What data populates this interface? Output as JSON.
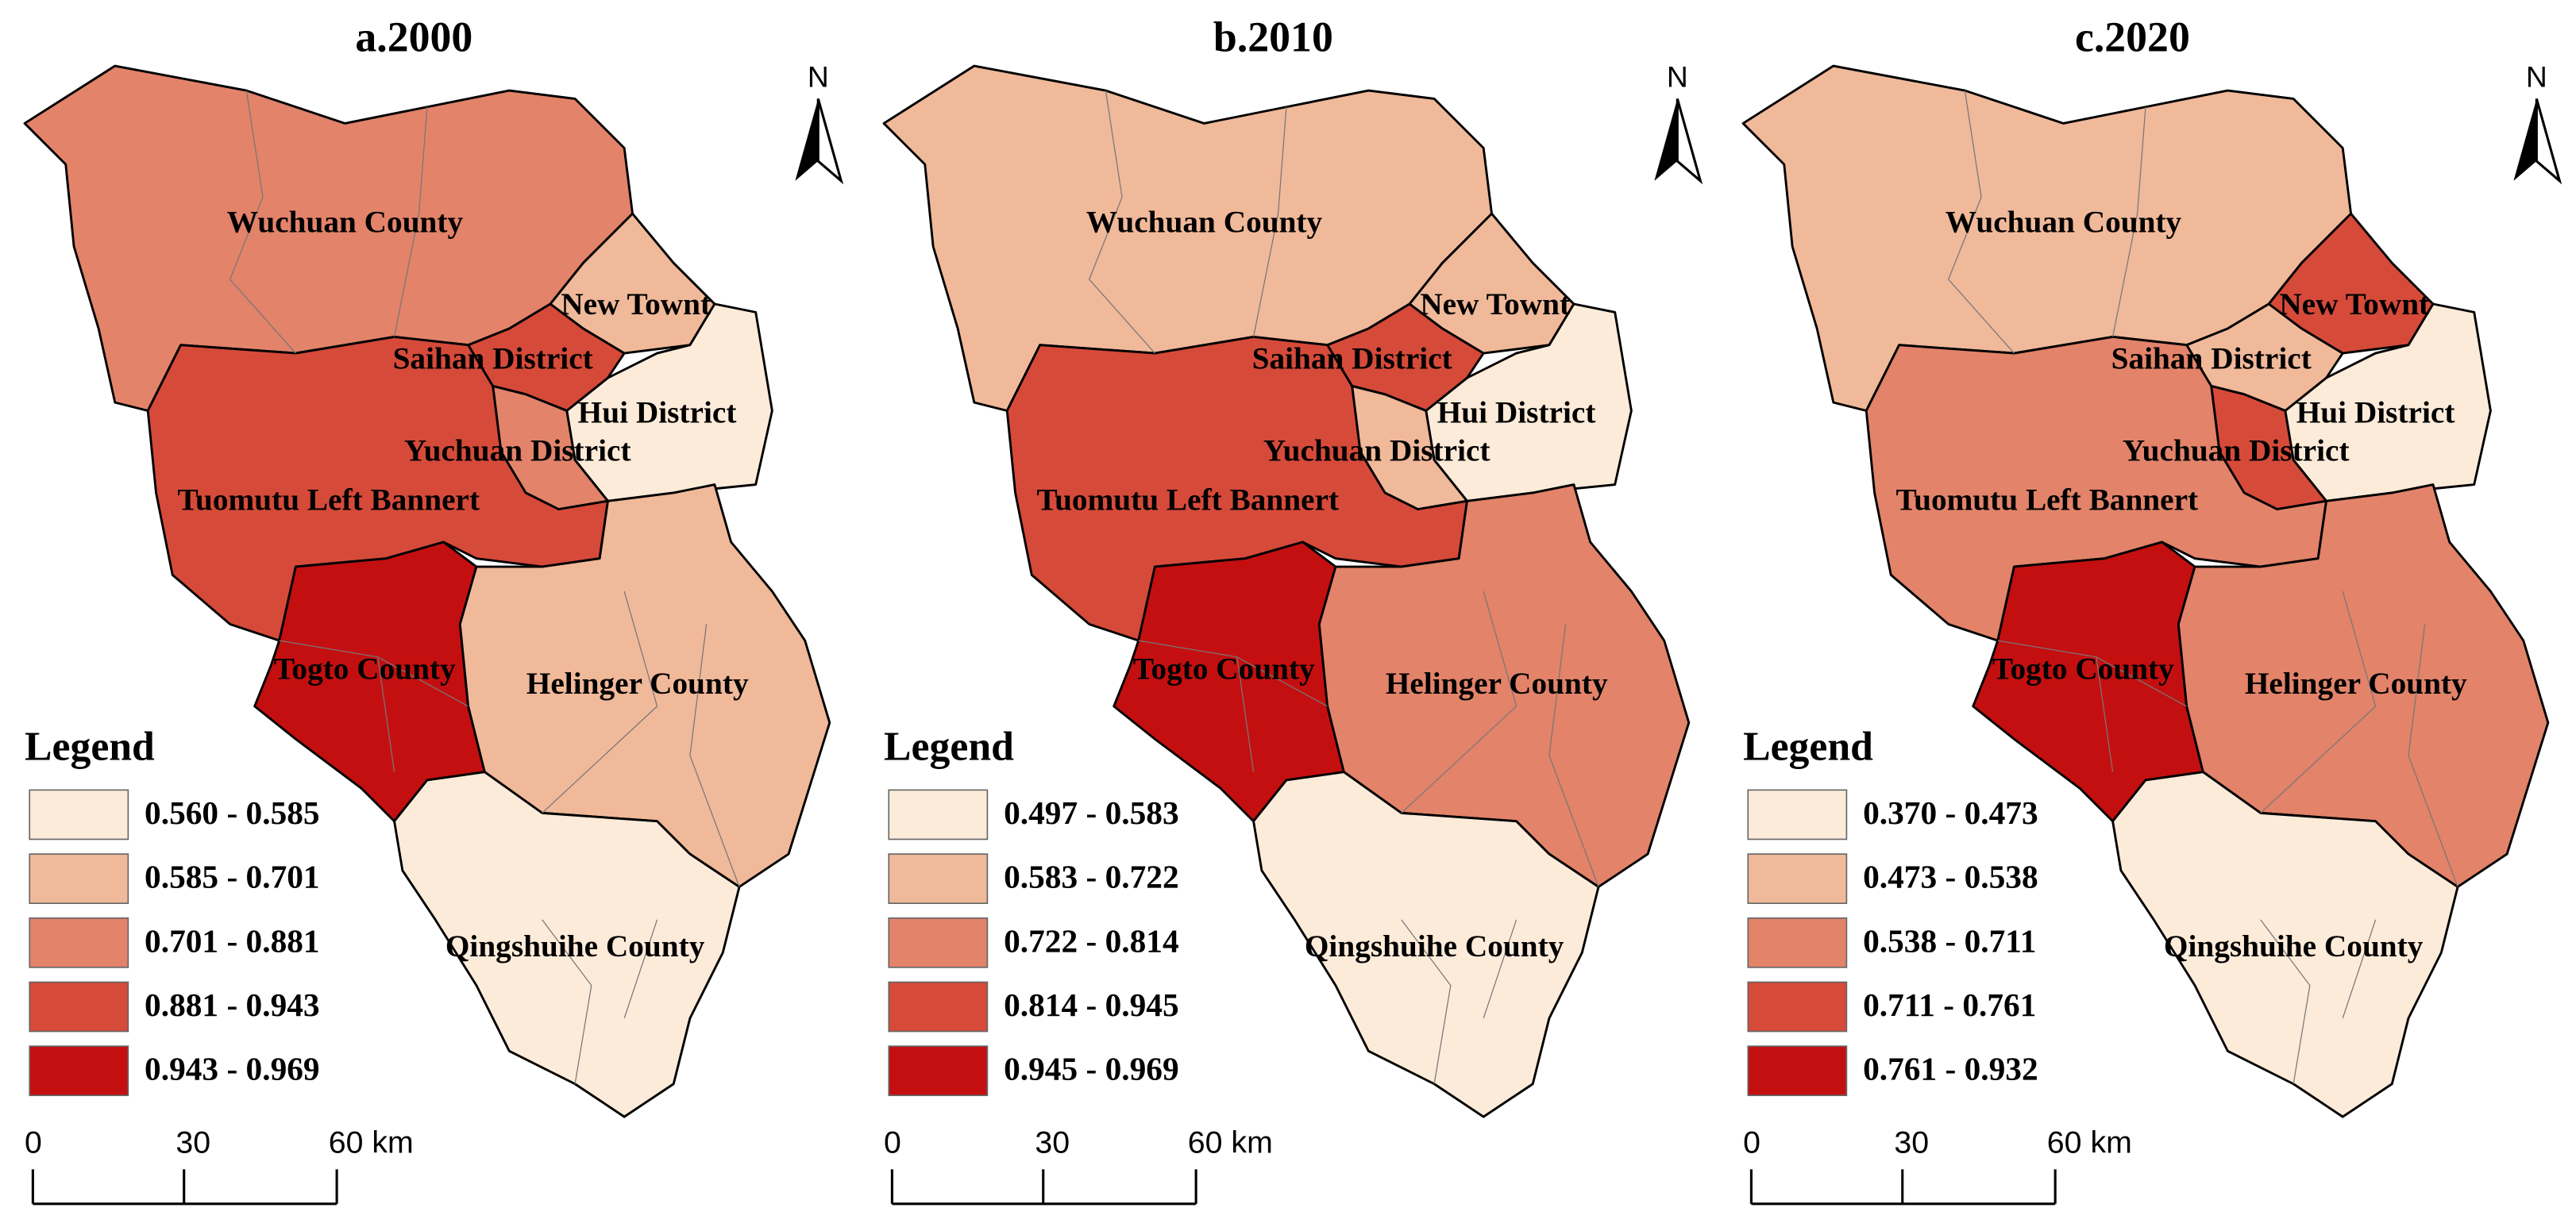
{
  "maps": [
    {
      "title": "a.2000",
      "north": "N",
      "legend": {
        "title": "Legend",
        "classes": [
          {
            "label": "0.560 - 0.585",
            "color": "#fdebd9"
          },
          {
            "label": "0.585 - 0.701",
            "color": "#f0b99a"
          },
          {
            "label": "0.701 - 0.881",
            "color": "#e2836a"
          },
          {
            "label": "0.881 - 0.943",
            "color": "#d64a3a"
          },
          {
            "label": "0.943 - 0.969",
            "color": "#c40f10"
          }
        ]
      },
      "districts": [
        {
          "name": "Wuchuan County",
          "color": "#e2836a"
        },
        {
          "name": "New Townt",
          "color": "#f0b99a"
        },
        {
          "name": "Saihan District",
          "color": "#fdebd9"
        },
        {
          "name": "Hui District",
          "color": "#d64a3a"
        },
        {
          "name": "Yuchuan District",
          "color": "#e2836a"
        },
        {
          "name": "Tuomutu Left Bannert",
          "color": "#d64a3a"
        },
        {
          "name": "Togto County",
          "color": "#c40f10"
        },
        {
          "name": "Helinger County",
          "color": "#f0b99a"
        },
        {
          "name": "Qingshuihe County",
          "color": "#fdebd9"
        }
      ],
      "scale_bar": [
        "0",
        "30",
        "60 km"
      ]
    },
    {
      "title": "b.2010",
      "north": "N",
      "legend": {
        "title": "Legend",
        "classes": [
          {
            "label": "0.497 - 0.583",
            "color": "#fdebd9"
          },
          {
            "label": "0.583 - 0.722",
            "color": "#f0b99a"
          },
          {
            "label": "0.722 - 0.814",
            "color": "#e2836a"
          },
          {
            "label": "0.814 - 0.945",
            "color": "#d64a3a"
          },
          {
            "label": "0.945 - 0.969",
            "color": "#c40f10"
          }
        ]
      },
      "districts": [
        {
          "name": "Wuchuan County",
          "color": "#f0b99a"
        },
        {
          "name": "New Townt",
          "color": "#f0b99a"
        },
        {
          "name": "Saihan District",
          "color": "#fdebd9"
        },
        {
          "name": "Hui District",
          "color": "#d64a3a"
        },
        {
          "name": "Yuchuan District",
          "color": "#f0b99a"
        },
        {
          "name": "Tuomutu Left Bannert",
          "color": "#d64a3a"
        },
        {
          "name": "Togto County",
          "color": "#c40f10"
        },
        {
          "name": "Helinger County",
          "color": "#e2836a"
        },
        {
          "name": "Qingshuihe County",
          "color": "#fdebd9"
        }
      ],
      "scale_bar": [
        "0",
        "30",
        "60 km"
      ]
    },
    {
      "title": "c.2020",
      "north": "N",
      "legend": {
        "title": "Legend",
        "classes": [
          {
            "label": "0.370 - 0.473",
            "color": "#fdebd9"
          },
          {
            "label": "0.473 - 0.538",
            "color": "#f0b99a"
          },
          {
            "label": "0.538 - 0.711",
            "color": "#e2836a"
          },
          {
            "label": "0.711 - 0.761",
            "color": "#d64a3a"
          },
          {
            "label": "0.761 - 0.932",
            "color": "#c40f10"
          }
        ]
      },
      "districts": [
        {
          "name": "Wuchuan County",
          "color": "#f0b99a"
        },
        {
          "name": "New Townt",
          "color": "#d64a3a"
        },
        {
          "name": "Saihan District",
          "color": "#fdebd9"
        },
        {
          "name": "Hui District",
          "color": "#f0b99a"
        },
        {
          "name": "Yuchuan District",
          "color": "#d64a3a"
        },
        {
          "name": "Tuomutu Left Bannert",
          "color": "#e2836a"
        },
        {
          "name": "Togto County",
          "color": "#c40f10"
        },
        {
          "name": "Helinger County",
          "color": "#e2836a"
        },
        {
          "name": "Qingshuihe County",
          "color": "#fdebd9"
        }
      ],
      "scale_bar": [
        "0",
        "30",
        "60 km"
      ]
    }
  ]
}
